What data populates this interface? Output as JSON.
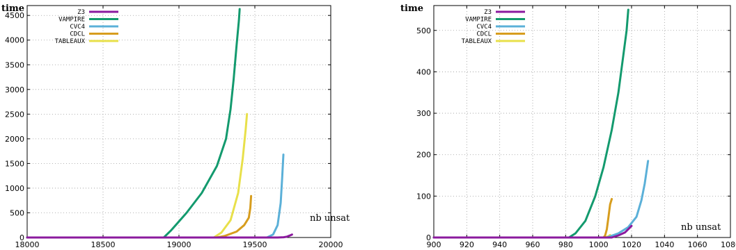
{
  "chart_data": [
    {
      "type": "line",
      "ylabel": "time",
      "xlabel": "nb  unsat",
      "xlim": [
        18000,
        20000
      ],
      "ylim": [
        0,
        4700
      ],
      "xticks": [
        18000,
        18500,
        19000,
        19500,
        20000
      ],
      "yticks": [
        0,
        500,
        1000,
        1500,
        2000,
        2500,
        3000,
        3500,
        4000,
        4500
      ],
      "grid": true,
      "legend_position": "top-left",
      "series": [
        {
          "name": "Z3",
          "color": "#8b1a9e",
          "points": [
            [
              18000,
              0
            ],
            [
              19650,
              0
            ],
            [
              19690,
              5
            ],
            [
              19710,
              15
            ],
            [
              19730,
              40
            ],
            [
              19745,
              60
            ]
          ]
        },
        {
          "name": "VAMPIRE",
          "color": "#139a6e",
          "points": [
            [
              18000,
              0
            ],
            [
              18900,
              0
            ],
            [
              18950,
              150
            ],
            [
              19050,
              500
            ],
            [
              19150,
              900
            ],
            [
              19250,
              1450
            ],
            [
              19310,
              2000
            ],
            [
              19340,
              2600
            ],
            [
              19360,
              3200
            ],
            [
              19380,
              3900
            ],
            [
              19395,
              4400
            ],
            [
              19400,
              4630
            ]
          ]
        },
        {
          "name": "CVC4",
          "color": "#5bb0d8",
          "points": [
            [
              18000,
              0
            ],
            [
              19580,
              0
            ],
            [
              19620,
              60
            ],
            [
              19650,
              250
            ],
            [
              19670,
              700
            ],
            [
              19680,
              1200
            ],
            [
              19688,
              1680
            ]
          ]
        },
        {
          "name": "CDCL",
          "color": "#d79d1e",
          "points": [
            [
              18000,
              0
            ],
            [
              19250,
              0
            ],
            [
              19300,
              30
            ],
            [
              19380,
              120
            ],
            [
              19430,
              250
            ],
            [
              19460,
              400
            ],
            [
              19470,
              600
            ],
            [
              19475,
              840
            ]
          ]
        },
        {
          "name": "TABLEAUX",
          "color": "#e8e04a",
          "points": [
            [
              18000,
              0
            ],
            [
              19230,
              0
            ],
            [
              19280,
              100
            ],
            [
              19340,
              350
            ],
            [
              19390,
              900
            ],
            [
              19420,
              1600
            ],
            [
              19440,
              2200
            ],
            [
              19448,
              2500
            ]
          ]
        }
      ]
    },
    {
      "type": "line",
      "ylabel": "time",
      "xlabel": "nb  unsat",
      "xlim": [
        900,
        1080
      ],
      "ylim": [
        0,
        560
      ],
      "xticks": [
        900,
        920,
        940,
        960,
        980,
        1000,
        1020,
        1040,
        1060,
        1080
      ],
      "yticks": [
        0,
        100,
        200,
        300,
        400,
        500
      ],
      "grid": true,
      "legend_position": "top-left",
      "series": [
        {
          "name": "Z3",
          "color": "#8b1a9e",
          "points": [
            [
              900,
              0
            ],
            [
              1008,
              0
            ],
            [
              1012,
              5
            ],
            [
              1016,
              12
            ],
            [
              1018,
              20
            ],
            [
              1020,
              28
            ]
          ]
        },
        {
          "name": "VAMPIRE",
          "color": "#139a6e",
          "points": [
            [
              900,
              0
            ],
            [
              982,
              0
            ],
            [
              986,
              10
            ],
            [
              992,
              40
            ],
            [
              998,
              100
            ],
            [
              1003,
              170
            ],
            [
              1008,
              260
            ],
            [
              1012,
              350
            ],
            [
              1015,
              440
            ],
            [
              1017,
              500
            ],
            [
              1018,
              550
            ]
          ]
        },
        {
          "name": "CVC4",
          "color": "#5bb0d8",
          "points": [
            [
              900,
              0
            ],
            [
              1005,
              0
            ],
            [
              1012,
              10
            ],
            [
              1018,
              25
            ],
            [
              1023,
              50
            ],
            [
              1026,
              90
            ],
            [
              1028,
              130
            ],
            [
              1030,
              185
            ]
          ]
        },
        {
          "name": "CDCL",
          "color": "#d79d1e",
          "points": [
            [
              900,
              0
            ],
            [
              1003,
              0
            ],
            [
              1004,
              5
            ],
            [
              1005,
              20
            ],
            [
              1006,
              50
            ],
            [
              1007,
              80
            ],
            [
              1008,
              93
            ]
          ]
        },
        {
          "name": "TABLEAUX",
          "color": "#e8e04a",
          "points": [
            [
              900,
              0
            ],
            [
              1004,
              0
            ],
            [
              1006,
              3
            ],
            [
              1007,
              6
            ]
          ]
        }
      ]
    }
  ]
}
